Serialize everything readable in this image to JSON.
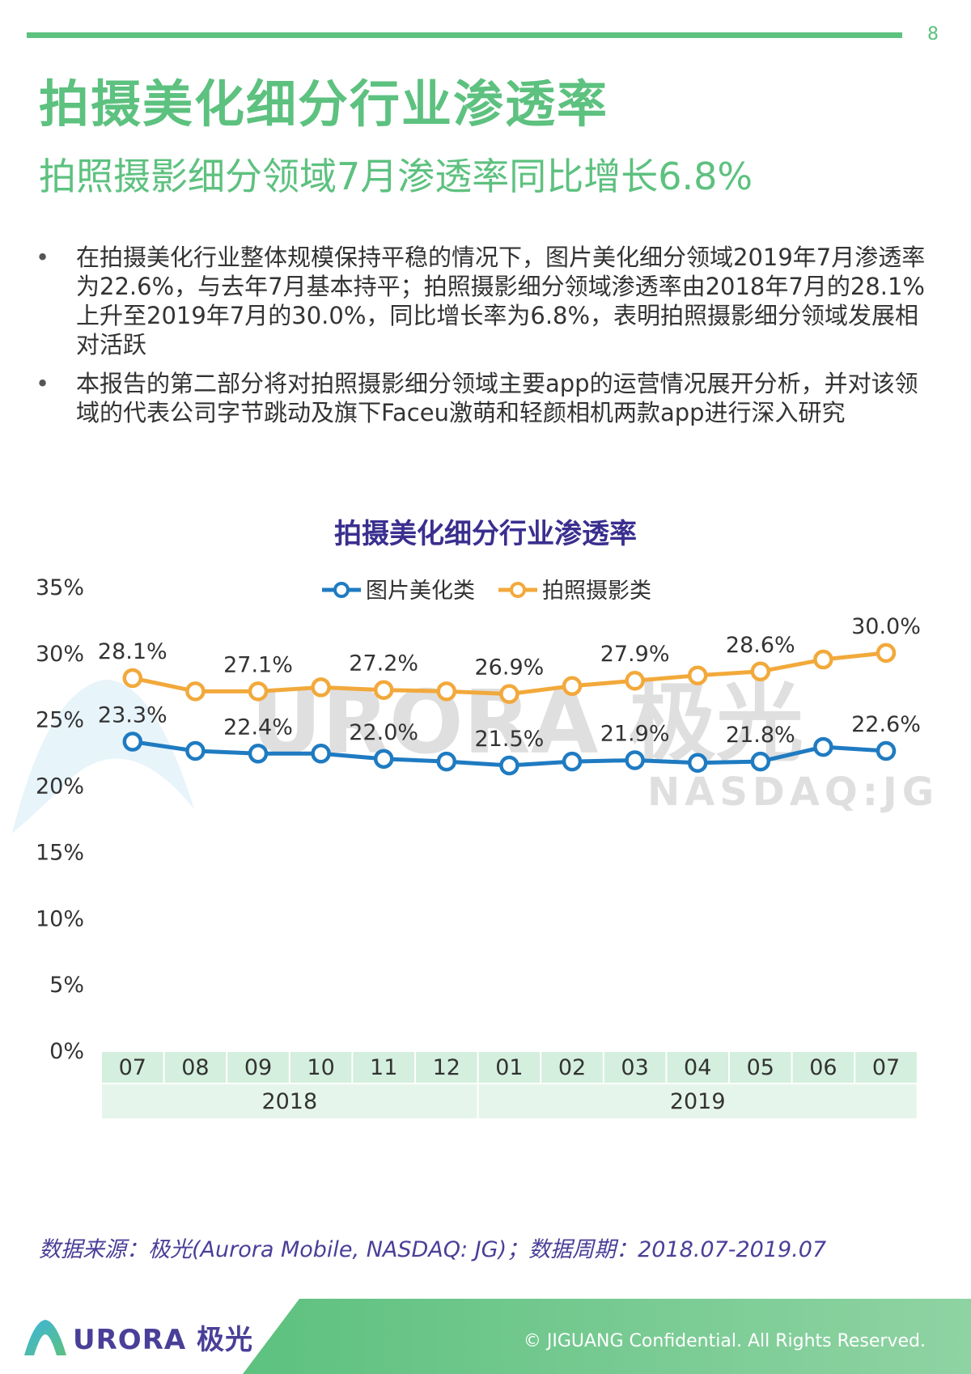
{
  "page": {
    "number": "8"
  },
  "header": {
    "title": "拍摄美化细分行业渗透率",
    "subtitle": "拍照摄影细分领域7月渗透率同比增长6.8%"
  },
  "bullets": [
    "在拍摄美化行业整体规模保持平稳的情况下，图片美化细分领域2019年7月渗透率为22.6%，与去年7月基本持平；拍照摄影细分领域渗透率由2018年7月的28.1%上升至2019年7月的30.0%，同比增长率为6.8%，表明拍照摄影细分领域发展相对活跃",
    "本报告的第二部分将对拍照摄影细分领域主要app的运营情况展开分析，并对该领域的代表公司字节跳动及旗下Faceu激萌和轻颜相机两款app进行深入研究"
  ],
  "chart_data": {
    "type": "line",
    "title": "拍摄美化细分行业渗透率",
    "x": [
      "07",
      "08",
      "09",
      "10",
      "11",
      "12",
      "01",
      "02",
      "03",
      "04",
      "05",
      "06",
      "07"
    ],
    "x_groups": [
      {
        "label": "2018",
        "count": 6
      },
      {
        "label": "2019",
        "count": 7
      }
    ],
    "ylim": [
      0,
      35
    ],
    "yticks": [
      "0%",
      "5%",
      "10%",
      "15%",
      "20%",
      "25%",
      "30%",
      "35%"
    ],
    "legend": "top",
    "grid": false,
    "series": [
      {
        "name": "图片美化类",
        "color": "#1f7bc1",
        "values": [
          23.3,
          22.6,
          22.4,
          22.4,
          22.0,
          21.8,
          21.5,
          21.8,
          21.9,
          21.7,
          21.8,
          22.9,
          22.6
        ],
        "labels": [
          "23.3%",
          "",
          "22.4%",
          "",
          "22.0%",
          "",
          "21.5%",
          "",
          "21.9%",
          "",
          "21.8%",
          "",
          "22.6%"
        ]
      },
      {
        "name": "拍照摄影类",
        "color": "#f2a93b",
        "values": [
          28.1,
          27.1,
          27.1,
          27.4,
          27.2,
          27.1,
          26.9,
          27.5,
          27.9,
          28.3,
          28.6,
          29.5,
          30.0
        ],
        "labels": [
          "28.1%",
          "",
          "27.1%",
          "",
          "27.2%",
          "",
          "26.9%",
          "",
          "27.9%",
          "",
          "28.6%",
          "",
          "30.0%"
        ]
      }
    ],
    "colors": {
      "axis_band": "#d4efdd",
      "axis_band_light": "#e6f5eb",
      "title": "#3a2f8f"
    }
  },
  "watermark": {
    "brand": "URORA 极光",
    "ticker": "NASDAQ:JG"
  },
  "source": "数据来源：极光(Aurora Mobile, NASDAQ: JG)；数据周期：2018.07-2019.07",
  "footer": {
    "logo_text": "URORA 极光",
    "copyright": "© JIGUANG Confidential. All Rights Reserved."
  },
  "colors": {
    "accent": "#5dc17f",
    "brand_purple": "#4a3f98"
  }
}
